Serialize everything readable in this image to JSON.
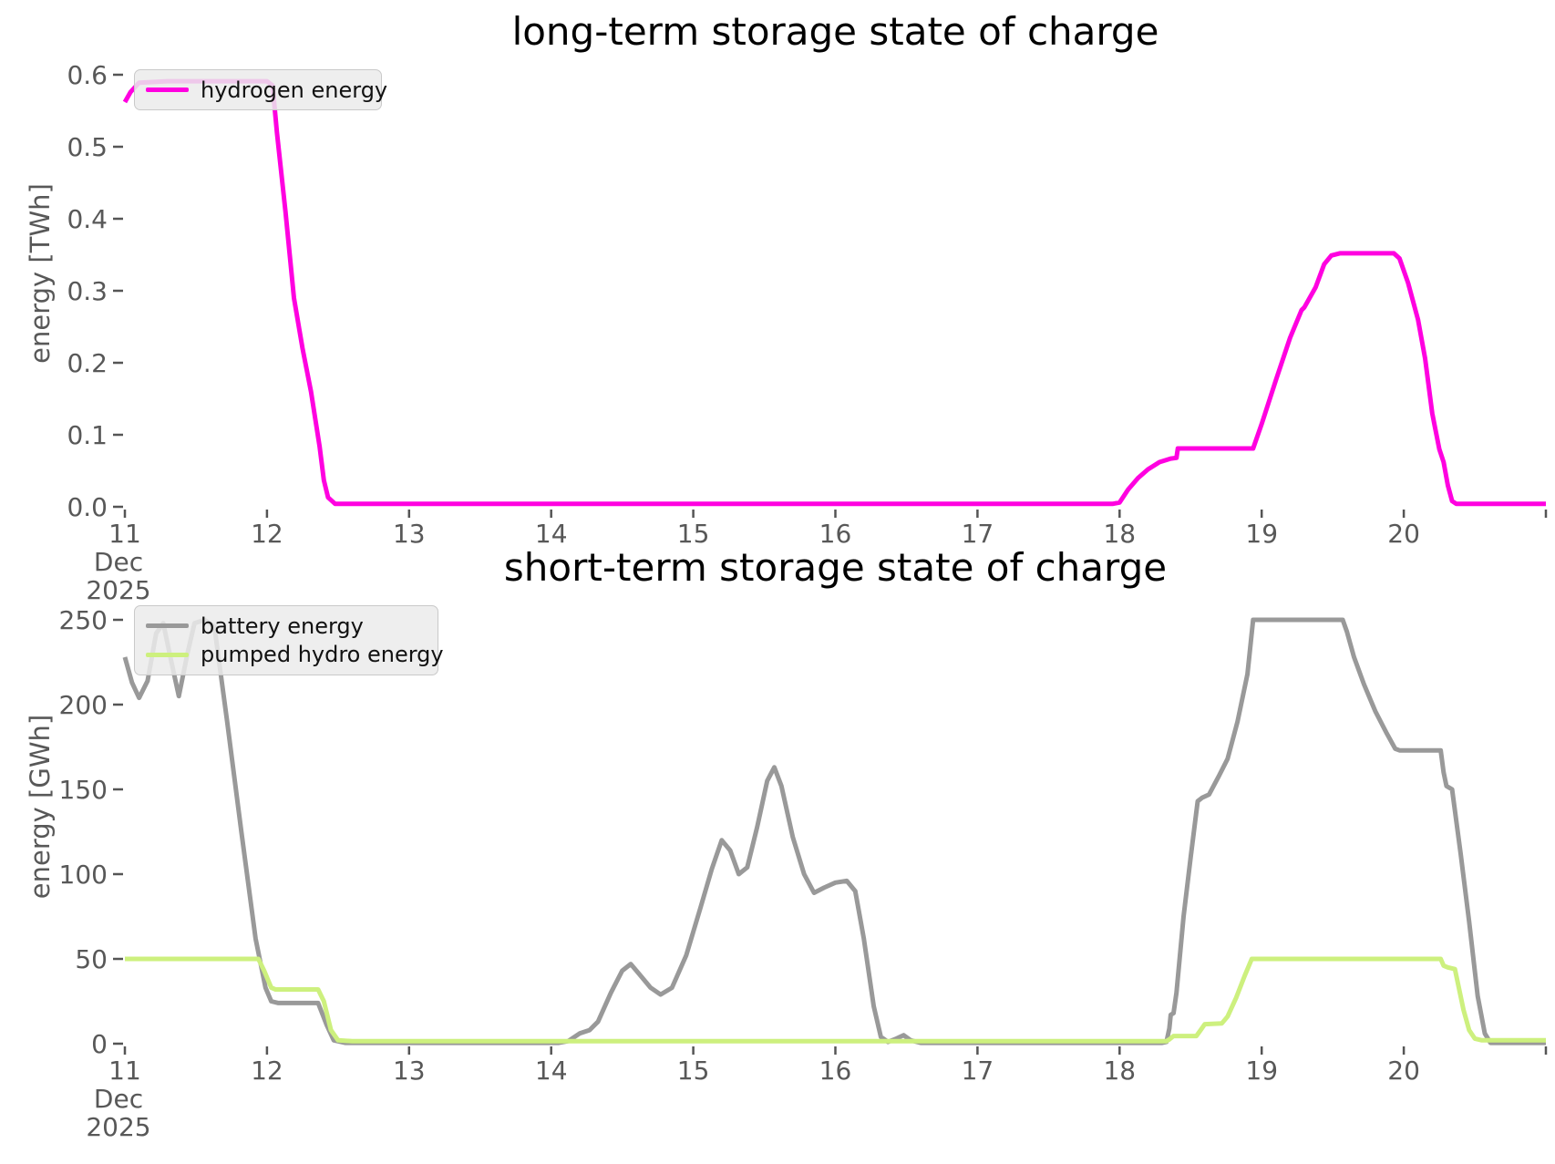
{
  "figure": {
    "background": "#ffffff",
    "tick_color": "#585858",
    "date_axis_start_labels": [
      "Dec",
      "2025"
    ]
  },
  "chart_data": [
    {
      "type": "line",
      "title": "long-term storage state of charge",
      "ylabel": "energy [TWh]",
      "xlim": [
        11,
        21
      ],
      "ylim": [
        0,
        0.635
      ],
      "grid": false,
      "legend_position": "upper left",
      "x_ticks": [
        {
          "day": 11,
          "label": "11"
        },
        {
          "day": 12,
          "label": "12"
        },
        {
          "day": 13,
          "label": "13"
        },
        {
          "day": 14,
          "label": "14"
        },
        {
          "day": 15,
          "label": "15"
        },
        {
          "day": 16,
          "label": "16"
        },
        {
          "day": 17,
          "label": "17"
        },
        {
          "day": 18,
          "label": "18"
        },
        {
          "day": 19,
          "label": "19"
        },
        {
          "day": 20,
          "label": "20"
        },
        {
          "day": 21,
          "label": ""
        }
      ],
      "x_sub_labels": [
        "Dec",
        "2025"
      ],
      "y_ticks": [
        {
          "value": 0.0,
          "label": "0.0"
        },
        {
          "value": 0.1,
          "label": "0.1"
        },
        {
          "value": 0.2,
          "label": "0.2"
        },
        {
          "value": 0.3,
          "label": "0.3"
        },
        {
          "value": 0.4,
          "label": "0.4"
        },
        {
          "value": 0.5,
          "label": "0.5"
        },
        {
          "value": 0.6,
          "label": "0.6"
        }
      ],
      "series": [
        {
          "name": "hydrogen energy",
          "color": "#ff00e0",
          "line_width": 5,
          "points": [
            [
              11.0,
              0.562
            ],
            [
              11.04,
              0.576
            ],
            [
              11.1,
              0.589
            ],
            [
              11.3,
              0.591
            ],
            [
              12.0,
              0.591
            ],
            [
              12.04,
              0.585
            ],
            [
              12.07,
              0.52
            ],
            [
              12.13,
              0.41
            ],
            [
              12.19,
              0.29
            ],
            [
              12.25,
              0.22
            ],
            [
              12.31,
              0.16
            ],
            [
              12.37,
              0.084
            ],
            [
              12.4,
              0.037
            ],
            [
              12.43,
              0.013
            ],
            [
              12.48,
              0.004
            ],
            [
              17.95,
              0.004
            ],
            [
              18.0,
              0.006
            ],
            [
              18.06,
              0.024
            ],
            [
              18.13,
              0.04
            ],
            [
              18.2,
              0.052
            ],
            [
              18.28,
              0.062
            ],
            [
              18.36,
              0.067
            ],
            [
              18.4,
              0.068
            ],
            [
              18.41,
              0.081
            ],
            [
              18.94,
              0.081
            ],
            [
              19.0,
              0.115
            ],
            [
              19.1,
              0.176
            ],
            [
              19.2,
              0.235
            ],
            [
              19.28,
              0.273
            ],
            [
              19.3,
              0.277
            ],
            [
              19.38,
              0.305
            ],
            [
              19.44,
              0.337
            ],
            [
              19.49,
              0.349
            ],
            [
              19.55,
              0.352
            ],
            [
              19.93,
              0.352
            ],
            [
              19.97,
              0.345
            ],
            [
              20.03,
              0.311
            ],
            [
              20.1,
              0.26
            ],
            [
              20.15,
              0.206
            ],
            [
              20.2,
              0.13
            ],
            [
              20.22,
              0.11
            ],
            [
              20.25,
              0.08
            ],
            [
              20.28,
              0.062
            ],
            [
              20.31,
              0.03
            ],
            [
              20.34,
              0.008
            ],
            [
              20.37,
              0.004
            ],
            [
              21.0,
              0.004
            ]
          ]
        }
      ]
    },
    {
      "type": "line",
      "title": "short-term storage state of charge",
      "ylabel": "energy [GWh]",
      "xlim": [
        11,
        21
      ],
      "ylim": [
        0,
        265
      ],
      "grid": false,
      "legend_position": "upper left",
      "x_ticks": [
        {
          "day": 11,
          "label": "11"
        },
        {
          "day": 12,
          "label": "12"
        },
        {
          "day": 13,
          "label": "13"
        },
        {
          "day": 14,
          "label": "14"
        },
        {
          "day": 15,
          "label": "15"
        },
        {
          "day": 16,
          "label": "16"
        },
        {
          "day": 17,
          "label": "17"
        },
        {
          "day": 18,
          "label": "18"
        },
        {
          "day": 19,
          "label": "19"
        },
        {
          "day": 20,
          "label": "20"
        },
        {
          "day": 21,
          "label": ""
        }
      ],
      "x_sub_labels": [
        "Dec",
        "2025"
      ],
      "y_ticks": [
        {
          "value": 0,
          "label": "0"
        },
        {
          "value": 50,
          "label": "50"
        },
        {
          "value": 100,
          "label": "100"
        },
        {
          "value": 150,
          "label": "150"
        },
        {
          "value": 200,
          "label": "200"
        },
        {
          "value": 250,
          "label": "250"
        }
      ],
      "series": [
        {
          "name": "battery energy",
          "color": "#999999",
          "line_width": 5,
          "points": [
            [
              11.0,
              228
            ],
            [
              11.05,
              213
            ],
            [
              11.1,
              204
            ],
            [
              11.16,
              214
            ],
            [
              11.22,
              242
            ],
            [
              11.27,
              248
            ],
            [
              11.32,
              228
            ],
            [
              11.38,
              205
            ],
            [
              11.44,
              230
            ],
            [
              11.49,
              248
            ],
            [
              11.56,
              250
            ],
            [
              11.63,
              246
            ],
            [
              11.72,
              190
            ],
            [
              11.82,
              125
            ],
            [
              11.92,
              62
            ],
            [
              11.99,
              33
            ],
            [
              12.03,
              25
            ],
            [
              12.08,
              24
            ],
            [
              12.36,
              24
            ],
            [
              12.42,
              11
            ],
            [
              12.47,
              2
            ],
            [
              12.55,
              0.5
            ],
            [
              14.05,
              0.5
            ],
            [
              14.12,
              1.5
            ],
            [
              14.2,
              6
            ],
            [
              14.27,
              8
            ],
            [
              14.33,
              13
            ],
            [
              14.42,
              30
            ],
            [
              14.5,
              43
            ],
            [
              14.56,
              47
            ],
            [
              14.62,
              41
            ],
            [
              14.7,
              33
            ],
            [
              14.77,
              29
            ],
            [
              14.85,
              33
            ],
            [
              14.95,
              52
            ],
            [
              15.05,
              80
            ],
            [
              15.13,
              103
            ],
            [
              15.2,
              120
            ],
            [
              15.26,
              114
            ],
            [
              15.32,
              100
            ],
            [
              15.38,
              104
            ],
            [
              15.45,
              128
            ],
            [
              15.52,
              155
            ],
            [
              15.57,
              163
            ],
            [
              15.62,
              152
            ],
            [
              15.7,
              122
            ],
            [
              15.78,
              100
            ],
            [
              15.85,
              89
            ],
            [
              15.92,
              92
            ],
            [
              16.0,
              95
            ],
            [
              16.08,
              96
            ],
            [
              16.14,
              90
            ],
            [
              16.2,
              62
            ],
            [
              16.27,
              22
            ],
            [
              16.32,
              4
            ],
            [
              16.37,
              1
            ],
            [
              16.43,
              3
            ],
            [
              16.48,
              5
            ],
            [
              16.53,
              2
            ],
            [
              16.6,
              0.5
            ],
            [
              18.3,
              0.5
            ],
            [
              18.33,
              1
            ],
            [
              18.35,
              9
            ],
            [
              18.36,
              17
            ],
            [
              18.38,
              18
            ],
            [
              18.4,
              30
            ],
            [
              18.45,
              75
            ],
            [
              18.5,
              110
            ],
            [
              18.55,
              143
            ],
            [
              18.58,
              145
            ],
            [
              18.63,
              147
            ],
            [
              18.7,
              158
            ],
            [
              18.76,
              168
            ],
            [
              18.83,
              190
            ],
            [
              18.9,
              218
            ],
            [
              18.94,
              250
            ],
            [
              19.57,
              250
            ],
            [
              19.6,
              243
            ],
            [
              19.65,
              228
            ],
            [
              19.72,
              212
            ],
            [
              19.8,
              196
            ],
            [
              19.88,
              183
            ],
            [
              19.94,
              174
            ],
            [
              19.97,
              173
            ],
            [
              20.26,
              173
            ],
            [
              20.28,
              160
            ],
            [
              20.3,
              152
            ],
            [
              20.34,
              150
            ],
            [
              20.4,
              112
            ],
            [
              20.46,
              72
            ],
            [
              20.52,
              28
            ],
            [
              20.57,
              6
            ],
            [
              20.61,
              0.5
            ],
            [
              21.0,
              0.5
            ]
          ]
        },
        {
          "name": "pumped hydro energy",
          "color": "#cdf07e",
          "line_width": 5,
          "points": [
            [
              11.0,
              50
            ],
            [
              11.94,
              50
            ],
            [
              11.98,
              43
            ],
            [
              12.03,
              33
            ],
            [
              12.06,
              32
            ],
            [
              12.36,
              32
            ],
            [
              12.4,
              25
            ],
            [
              12.45,
              8
            ],
            [
              12.5,
              2
            ],
            [
              12.6,
              1.5
            ],
            [
              18.33,
              1.5
            ],
            [
              18.35,
              2.5
            ],
            [
              18.38,
              4.5
            ],
            [
              18.54,
              4.5
            ],
            [
              18.57,
              8
            ],
            [
              18.6,
              11.5
            ],
            [
              18.72,
              12
            ],
            [
              18.76,
              16
            ],
            [
              18.82,
              27
            ],
            [
              18.88,
              40
            ],
            [
              18.93,
              50
            ],
            [
              20.26,
              50
            ],
            [
              20.28,
              46
            ],
            [
              20.31,
              45
            ],
            [
              20.36,
              44
            ],
            [
              20.42,
              20
            ],
            [
              20.46,
              8
            ],
            [
              20.5,
              3
            ],
            [
              20.55,
              2
            ],
            [
              21.0,
              2
            ]
          ]
        }
      ]
    }
  ]
}
